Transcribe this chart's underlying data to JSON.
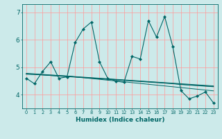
{
  "xlabel": "Humidex (Indice chaleur)",
  "bg_color": "#cceaea",
  "line_color": "#006666",
  "grid_color_v": "#ff9999",
  "grid_color_h": "#ff9999",
  "xlim": [
    -0.5,
    23.5
  ],
  "ylim": [
    3.5,
    7.3
  ],
  "yticks": [
    4,
    5,
    6,
    7
  ],
  "xtick_labels": [
    "0",
    "1",
    "2",
    "3",
    "4",
    "5",
    "6",
    "7",
    "8",
    "9",
    "10",
    "11",
    "12",
    "13",
    "14",
    "15",
    "16",
    "17",
    "18",
    "19",
    "20",
    "21",
    "22",
    "23"
  ],
  "main_series": [
    4.6,
    4.4,
    4.85,
    5.2,
    4.6,
    4.65,
    5.9,
    6.4,
    6.65,
    5.2,
    4.6,
    4.5,
    4.45,
    5.4,
    5.3,
    6.7,
    6.1,
    6.85,
    5.75,
    4.15,
    3.85,
    3.95,
    4.1,
    3.7
  ],
  "smooth_lines": [
    [
      4.75,
      4.75,
      4.73,
      4.71,
      4.7,
      4.68,
      4.66,
      4.64,
      4.62,
      4.6,
      4.58,
      4.56,
      4.54,
      4.52,
      4.5,
      4.48,
      4.46,
      4.44,
      4.42,
      4.4,
      4.38,
      4.36,
      4.34,
      4.32
    ],
    [
      4.75,
      4.74,
      4.72,
      4.7,
      4.68,
      4.66,
      4.64,
      4.62,
      4.6,
      4.58,
      4.56,
      4.54,
      4.52,
      4.5,
      4.48,
      4.46,
      4.44,
      4.42,
      4.4,
      4.37,
      4.35,
      4.33,
      4.31,
      4.29
    ],
    [
      4.76,
      4.74,
      4.72,
      4.7,
      4.68,
      4.67,
      4.65,
      4.63,
      4.61,
      4.59,
      4.57,
      4.55,
      4.53,
      4.51,
      4.49,
      4.47,
      4.45,
      4.43,
      4.41,
      4.38,
      4.36,
      4.34,
      4.32,
      4.3
    ],
    [
      4.78,
      4.76,
      4.74,
      4.72,
      4.7,
      4.68,
      4.65,
      4.62,
      4.59,
      4.56,
      4.53,
      4.5,
      4.47,
      4.44,
      4.41,
      4.38,
      4.35,
      4.32,
      4.29,
      4.26,
      4.23,
      4.2,
      4.17,
      4.14
    ]
  ]
}
